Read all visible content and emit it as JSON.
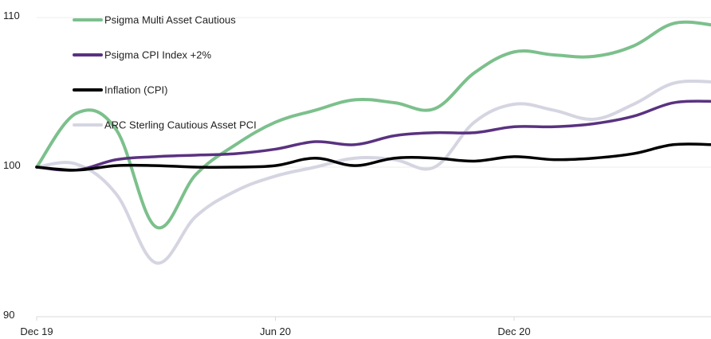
{
  "chart_data": {
    "type": "line",
    "title": "",
    "xlabel": "",
    "ylabel": "",
    "ylim": [
      90,
      110
    ],
    "yticks": [
      "90",
      "100",
      "110"
    ],
    "xticks": [
      {
        "label": "Dec 19",
        "month": 0
      },
      {
        "label": "Jun 20",
        "month": 6
      },
      {
        "label": "Dec 20",
        "month": 12
      }
    ],
    "xlim_months": [
      0,
      17
    ],
    "grid": false,
    "legend_placement": "top-left",
    "x": [
      0,
      1,
      2,
      3,
      4,
      5,
      6,
      7,
      8,
      9,
      10,
      11,
      12,
      13,
      14,
      15,
      16,
      17
    ],
    "series": [
      {
        "name": "Psigma Multi Asset Cautious",
        "color": "#7cc08c",
        "values": [
          100,
          103.6,
          102.5,
          96.0,
          99.5,
          101.5,
          103.0,
          103.8,
          104.5,
          104.3,
          103.9,
          106.3,
          107.7,
          107.5,
          107.4,
          108.1,
          109.6,
          109.5
        ]
      },
      {
        "name": "Psigma CPI Index +2%",
        "color": "#5a3280",
        "values": [
          100,
          99.8,
          100.5,
          100.7,
          100.8,
          100.9,
          101.2,
          101.7,
          101.5,
          102.1,
          102.3,
          102.3,
          102.7,
          102.7,
          102.9,
          103.4,
          104.3,
          104.4
        ]
      },
      {
        "name": "Inflation (CPI)",
        "color": "#000000",
        "values": [
          100,
          99.8,
          100.1,
          100.1,
          100.0,
          100.0,
          100.1,
          100.6,
          100.1,
          100.6,
          100.6,
          100.4,
          100.7,
          100.5,
          100.6,
          100.9,
          101.5,
          101.5
        ]
      },
      {
        "name": "ARC Sterling Cautious Asset PCI",
        "color": "#d5d5e2",
        "values": [
          100,
          100.2,
          98.2,
          93.6,
          96.7,
          98.4,
          99.4,
          100.0,
          100.6,
          100.5,
          100.0,
          103.0,
          104.2,
          103.8,
          103.2,
          104.2,
          105.6,
          105.7
        ]
      }
    ]
  }
}
